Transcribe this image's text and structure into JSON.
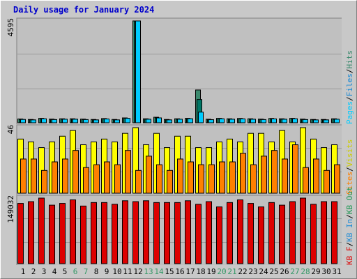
{
  "title": "Daily usage for January 2024",
  "colors": {
    "background": "#c8c8c8",
    "plot": "#c0c0c0",
    "title": "#0000cc",
    "pages": "#00ccff",
    "files": "#007766",
    "hits": "#3c8a6e",
    "visits": "#ffff00",
    "sites": "#ff8000",
    "kbin": "#1a8ad6",
    "kbout": "#1a9650",
    "kbf": "#dd0000",
    "weekend_day": "#339966",
    "weekday": "#000000"
  },
  "chart_data": [
    {
      "type": "bar",
      "panel": "hits-files-pages",
      "max_label": "4595",
      "ylim": [
        0,
        4595
      ],
      "legend": [
        "Pages",
        "Files",
        "Hits"
      ],
      "legend_separator": "/",
      "categories": [
        "1",
        "2",
        "3",
        "4",
        "5",
        "6",
        "7",
        "8",
        "9",
        "10",
        "11",
        "12",
        "13",
        "14",
        "15",
        "16",
        "17",
        "18",
        "19",
        "20",
        "21",
        "22",
        "23",
        "24",
        "25",
        "26",
        "27",
        "28",
        "29",
        "30",
        "31"
      ],
      "weekend_days": [
        6,
        7,
        13,
        14,
        20,
        21,
        27,
        28
      ],
      "series": [
        {
          "name": "Hits",
          "values": [
            170,
            150,
            200,
            165,
            180,
            180,
            165,
            150,
            190,
            150,
            220,
            4595,
            180,
            250,
            150,
            180,
            200,
            1480,
            160,
            200,
            180,
            195,
            180,
            165,
            195,
            180,
            200,
            165,
            150,
            150,
            180
          ]
        },
        {
          "name": "Files",
          "values": [
            150,
            130,
            180,
            145,
            160,
            160,
            145,
            130,
            170,
            130,
            200,
            4595,
            160,
            220,
            130,
            160,
            180,
            1050,
            140,
            180,
            160,
            175,
            160,
            145,
            175,
            160,
            180,
            145,
            130,
            130,
            160
          ]
        },
        {
          "name": "Pages",
          "values": [
            150,
            130,
            180,
            145,
            160,
            160,
            145,
            130,
            170,
            130,
            200,
            4595,
            160,
            220,
            130,
            160,
            180,
            480,
            140,
            180,
            160,
            175,
            160,
            145,
            175,
            160,
            180,
            145,
            130,
            130,
            160
          ]
        }
      ]
    },
    {
      "type": "bar",
      "panel": "visits-sites",
      "max_label": "46",
      "ylim": [
        0,
        46
      ],
      "legend": [
        "Visits",
        "Sites"
      ],
      "legend_separator": "/",
      "series": [
        {
          "name": "Visits",
          "values": [
            38,
            36,
            32,
            36,
            40,
            44,
            34,
            36,
            38,
            36,
            42,
            46,
            34,
            42,
            32,
            40,
            40,
            32,
            32,
            36,
            38,
            36,
            42,
            42,
            36,
            44,
            36,
            46,
            38,
            32,
            34
          ]
        },
        {
          "name": "Sites",
          "values": [
            24,
            24,
            16,
            22,
            24,
            30,
            18,
            20,
            22,
            20,
            30,
            16,
            26,
            20,
            16,
            24,
            22,
            20,
            20,
            22,
            22,
            28,
            20,
            26,
            30,
            24,
            34,
            18,
            24,
            16,
            20
          ]
        }
      ]
    },
    {
      "type": "bar",
      "panel": "kbytes",
      "max_label": "149032",
      "ylim": [
        0,
        149032
      ],
      "legend": [
        "KB F",
        "KB In",
        "KB Out"
      ],
      "legend_separator": "/",
      "series": [
        {
          "name": "KB F",
          "values": [
            137000,
            141000,
            149032,
            133000,
            137000,
            145000,
            131000,
            139000,
            139000,
            135000,
            143000,
            141000,
            143000,
            139000,
            139000,
            139000,
            143000,
            135000,
            141000,
            129000,
            139000,
            145000,
            137000,
            129000,
            139000,
            133000,
            141000,
            149032,
            135000,
            141000,
            141000
          ]
        }
      ]
    }
  ]
}
